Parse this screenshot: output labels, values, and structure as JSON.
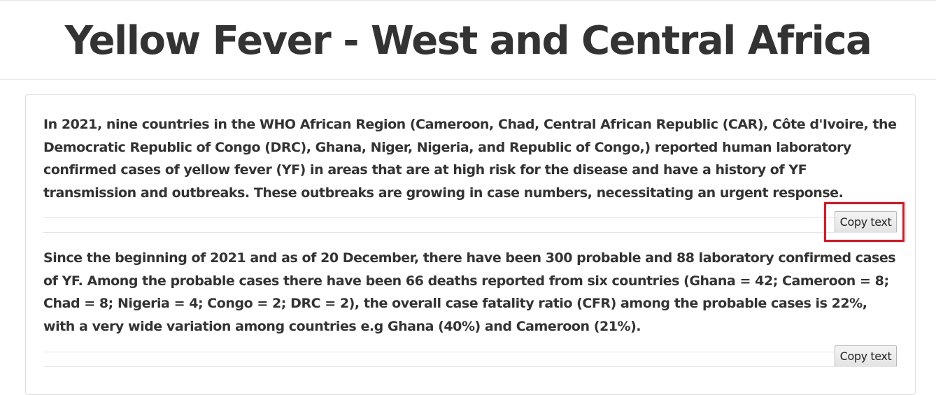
{
  "header": {
    "title": "Yellow Fever - West and Central Africa"
  },
  "sections": [
    {
      "text": "In 2021, nine countries in the WHO African Region (Cameroon, Chad, Central African Republic (CAR), Côte d'Ivoire, the Democratic Republic of Congo (DRC), Ghana, Niger, Nigeria, and Republic of Congo,) reported human laboratory confirmed cases of yellow fever (YF) in areas that are at high risk for the disease and have a history of YF transmission and outbreaks. These outbreaks are growing in case numbers, necessitating an urgent response.",
      "copy_label": "Copy text",
      "highlighted": true
    },
    {
      "text": "Since the beginning of 2021 and as of 20 December, there have been 300 probable and 88 laboratory confirmed cases of YF. Among the probable cases there have been 66 deaths reported from six countries (Ghana = 42; Cameroon = 8; Chad = 8; Nigeria = 4; Congo = 2; DRC = 2), the overall case fatality ratio (CFR) among the probable cases is 22%, with a very wide variation among countries e.g Ghana (40%) and Cameroon (21%).",
      "copy_label": "Copy text",
      "highlighted": false
    }
  ],
  "colors": {
    "highlight": "#e8111f",
    "text": "#333333"
  }
}
